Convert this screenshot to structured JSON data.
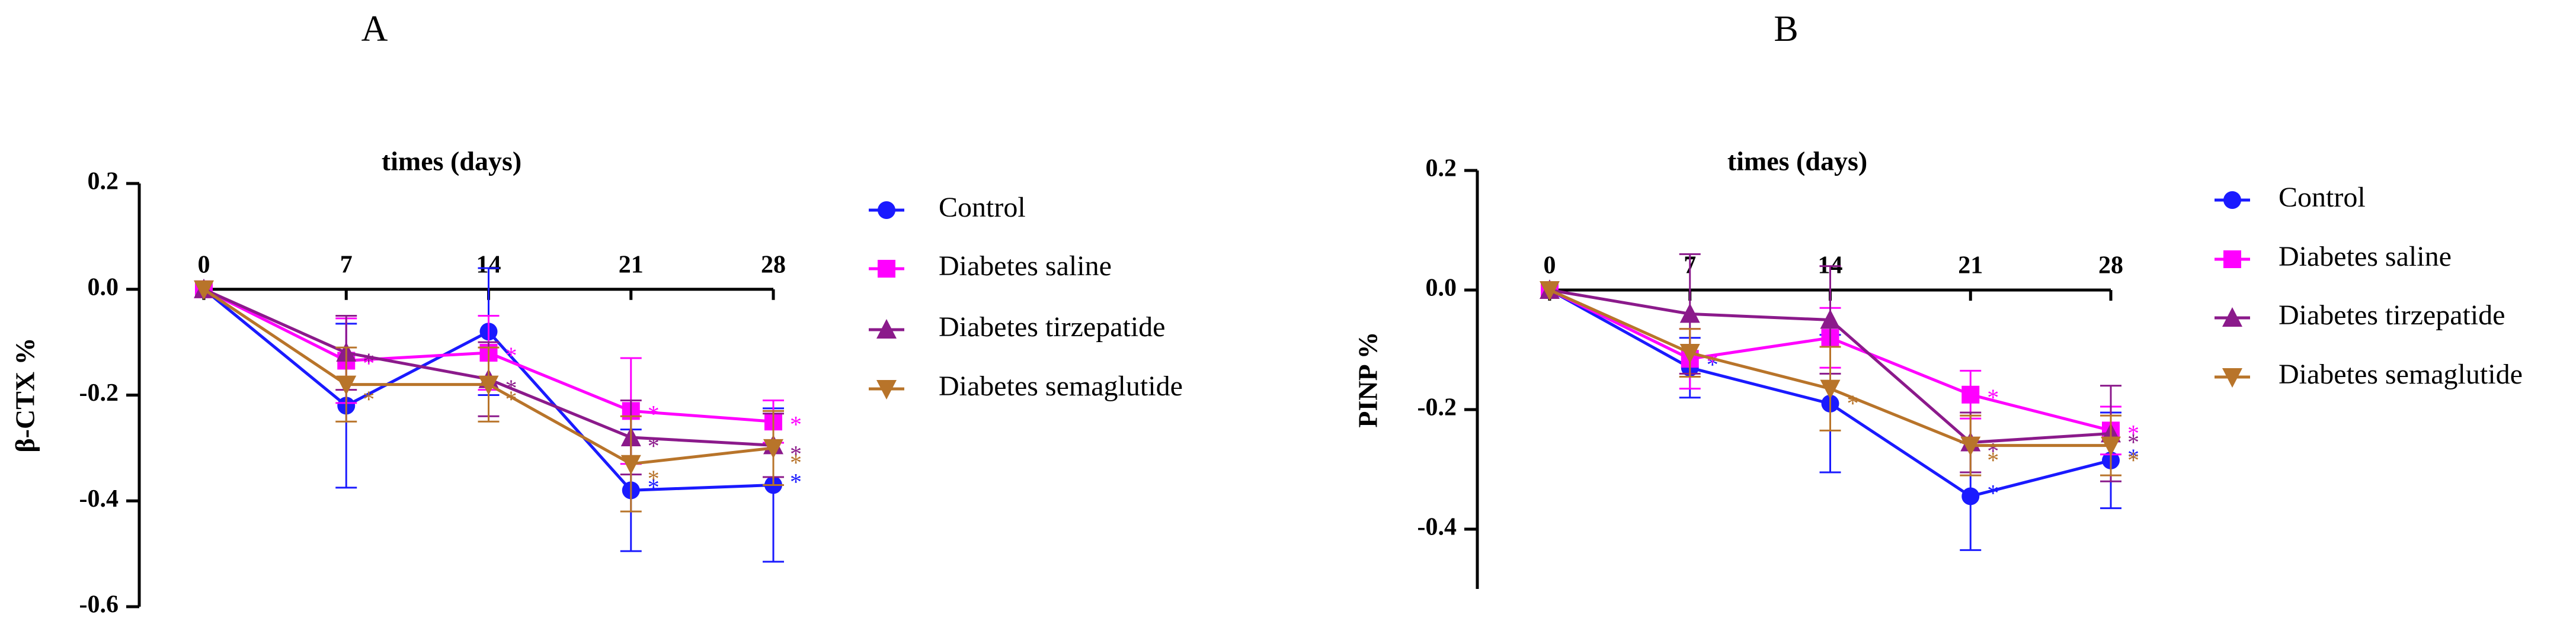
{
  "chart_data": [
    {
      "type": "line",
      "panel_label": "A",
      "x_label": "times (days)",
      "y_label": "β-CTX %",
      "x": [
        0,
        7,
        14,
        21,
        28
      ],
      "xlim": [
        0,
        28
      ],
      "xticks": [
        0,
        7,
        14,
        21,
        28
      ],
      "ylim": [
        -0.6,
        0.2
      ],
      "yticks": [
        -0.6,
        -0.4,
        -0.2,
        {
          "value": 0,
          "label": "0.0"
        },
        0.2
      ],
      "series": [
        {
          "name": "Control",
          "color": "#1a1aff",
          "marker": "circle",
          "values": [
            0,
            -0.22,
            -0.08,
            -0.38,
            -0.37
          ],
          "errors": [
            0,
            0.155,
            0.12,
            0.115,
            0.145
          ],
          "significance": [
            null,
            null,
            null,
            "*",
            "*"
          ]
        },
        {
          "name": "Diabetes saline",
          "color": "#ff00ff",
          "marker": "square",
          "values": [
            0,
            -0.135,
            -0.12,
            -0.23,
            -0.25
          ],
          "errors": [
            0,
            0.08,
            0.07,
            0.1,
            0.04
          ],
          "significance": [
            null,
            "*",
            "*",
            "*",
            "*"
          ]
        },
        {
          "name": "Diabetes tirzepatide",
          "color": "#8b1a8b",
          "marker": "triangle-up",
          "values": [
            0,
            -0.12,
            -0.17,
            -0.28,
            -0.295
          ],
          "errors": [
            0,
            0.07,
            0.07,
            0.07,
            0.06
          ],
          "significance": [
            null,
            "*",
            "*",
            "*",
            "*"
          ]
        },
        {
          "name": "Diabetes semaglutide",
          "color": "#b8742a",
          "marker": "triangle-down",
          "values": [
            0,
            -0.18,
            -0.18,
            -0.33,
            -0.3
          ],
          "errors": [
            0,
            0.07,
            0.07,
            0.09,
            0.07
          ],
          "significance": [
            null,
            "*",
            "*",
            "*",
            "*"
          ]
        }
      ]
    },
    {
      "type": "line",
      "panel_label": "B",
      "x_label": "times (days)",
      "y_label": "PINP %",
      "x": [
        0,
        7,
        14,
        21,
        28
      ],
      "xlim": [
        0,
        28
      ],
      "xticks": [
        0,
        7,
        14,
        21,
        28
      ],
      "ylim": [
        -0.5,
        0.2
      ],
      "yticks": [
        -0.4,
        -0.2,
        {
          "value": 0,
          "label": "0.0"
        },
        0.2
      ],
      "series": [
        {
          "name": "Control",
          "color": "#1a1aff",
          "marker": "circle",
          "values": [
            0,
            -0.13,
            -0.19,
            -0.345,
            -0.285
          ],
          "errors": [
            0,
            0.05,
            0.115,
            0.09,
            0.08
          ],
          "significance": [
            null,
            "*",
            null,
            "*",
            "*"
          ]
        },
        {
          "name": "Diabetes saline",
          "color": "#ff00ff",
          "marker": "square",
          "values": [
            0,
            -0.115,
            -0.08,
            -0.175,
            -0.235
          ],
          "errors": [
            0,
            0.05,
            0.05,
            0.04,
            0.04
          ],
          "significance": [
            null,
            "*",
            null,
            "*",
            "*"
          ]
        },
        {
          "name": "Diabetes tirzepatide",
          "color": "#8b1a8b",
          "marker": "triangle-up",
          "values": [
            0,
            -0.04,
            -0.05,
            -0.255,
            -0.24
          ],
          "errors": [
            0,
            0.1,
            0.09,
            0.05,
            0.08
          ],
          "significance": [
            null,
            null,
            null,
            "*",
            "*"
          ]
        },
        {
          "name": "Diabetes semaglutide",
          "color": "#b8742a",
          "marker": "triangle-down",
          "values": [
            0,
            -0.105,
            -0.165,
            -0.26,
            -0.26
          ],
          "errors": [
            0,
            0.04,
            0.07,
            0.05,
            0.05
          ],
          "significance": [
            null,
            null,
            "*",
            "*",
            "*"
          ]
        }
      ]
    }
  ]
}
